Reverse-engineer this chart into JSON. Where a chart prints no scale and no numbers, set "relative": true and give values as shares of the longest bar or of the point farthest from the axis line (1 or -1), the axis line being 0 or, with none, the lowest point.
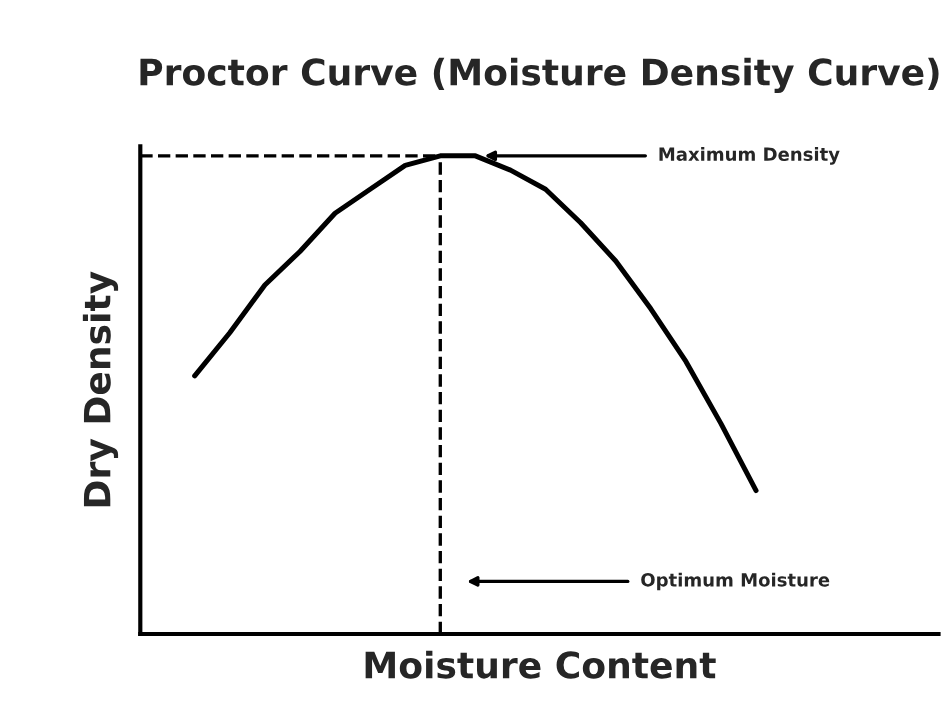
{
  "chart_data": {
    "type": "line",
    "title": "Proctor Curve (Moisture Density Curve)",
    "xlabel": "Moisture Content",
    "ylabel": "Dry Density",
    "relative": true,
    "categories": [
      null,
      null,
      null,
      null,
      null,
      null,
      null,
      null,
      null,
      null,
      null,
      null,
      null,
      null,
      null,
      null,
      null
    ],
    "series": [
      {
        "color": "#000000",
        "values": [
          0.54,
          0.63,
          0.73,
          0.8,
          0.88,
          0.93,
          0.98,
          1,
          1,
          0.97,
          0.93,
          0.86,
          0.78,
          0.68,
          0.57,
          0.44,
          0.3
        ]
      }
    ],
    "ref_lines": [
      {
        "axis": "y",
        "value": 1,
        "line_style": "dashed",
        "color": "#000000"
      }
    ],
    "annotations": [
      "Maximum Density",
      "Optimum Moisture"
    ],
    "legend": false,
    "tick_labels": false,
    "marker": "none",
    "line_style": "solid"
  }
}
